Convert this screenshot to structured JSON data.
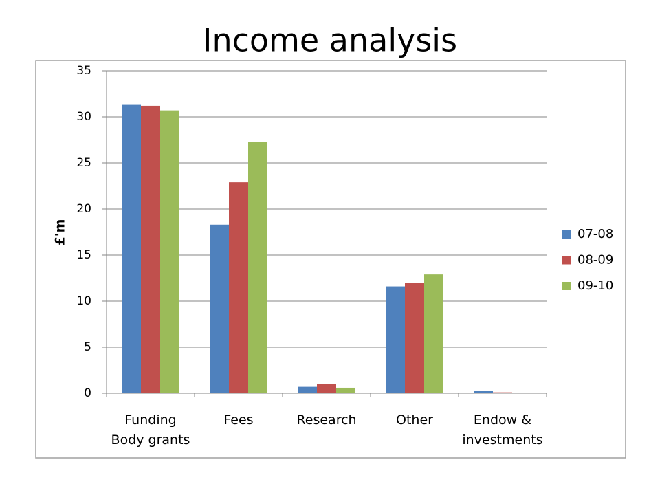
{
  "chart_data": {
    "type": "bar",
    "title": "Income analysis",
    "y_label": "£'m",
    "categories": [
      "Funding Body grants",
      "Fees",
      "Research",
      "Other",
      "Endow & investments"
    ],
    "series": [
      {
        "name": "07-08",
        "color": "#4f81bd",
        "values": [
          31.3,
          18.3,
          0.7,
          11.6,
          0.25
        ]
      },
      {
        "name": "08-09",
        "color": "#c0504d",
        "values": [
          31.2,
          22.9,
          1.0,
          12.0,
          0.1
        ]
      },
      {
        "name": "09-10",
        "color": "#9bbb59",
        "values": [
          30.7,
          27.3,
          0.6,
          12.9,
          0.05
        ]
      }
    ],
    "ylim": [
      0,
      35
    ],
    "yticks": [
      0,
      5,
      10,
      15,
      20,
      25,
      30,
      35
    ],
    "grid": true,
    "legend": "right"
  }
}
